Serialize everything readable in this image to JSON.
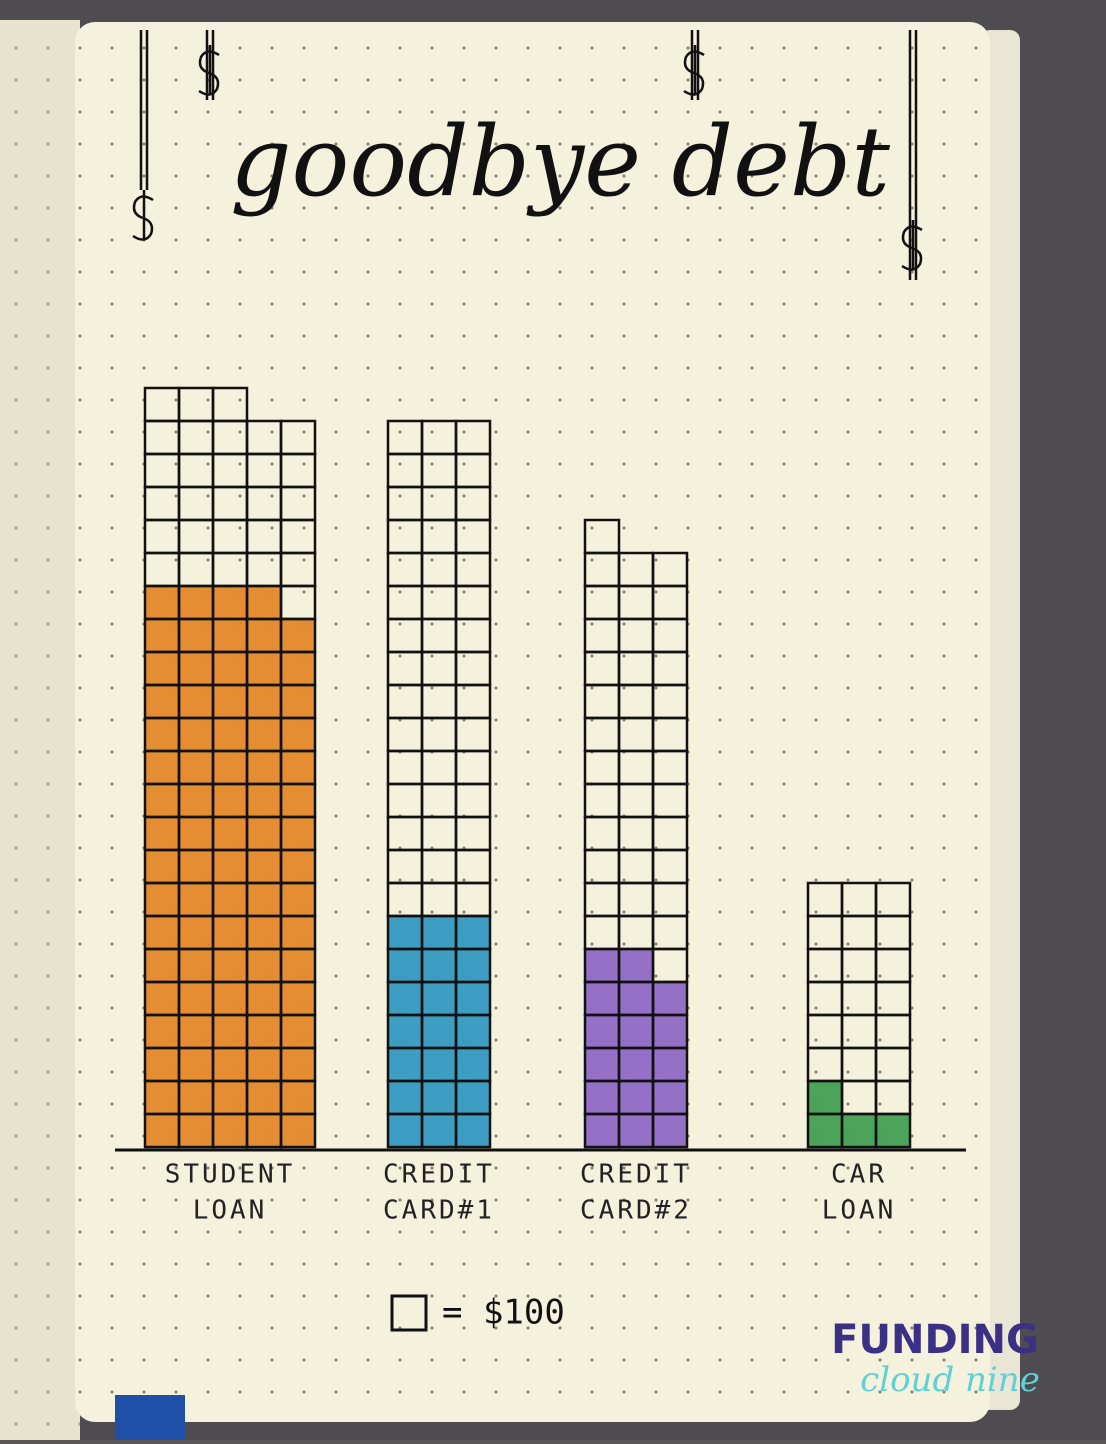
{
  "chart_data": {
    "type": "bar",
    "title": "goodbye debt",
    "categories": [
      [
        "STUDENT",
        "LOAN"
      ],
      [
        "CREDIT",
        "CARD#1"
      ],
      [
        "CREDIT",
        "CARD#2"
      ],
      [
        "CAR",
        "LOAN"
      ]
    ],
    "values": [
      113,
      66,
      55,
      24
    ],
    "paid": [
      84,
      21,
      17,
      4
    ],
    "colors": [
      "#e3821f",
      "#2a93c0",
      "#8a63c4",
      "#3a9b4c"
    ],
    "unit_label": "= $100"
  },
  "watermark": {
    "line1": "FUNDING",
    "line2": "cloud nine"
  }
}
